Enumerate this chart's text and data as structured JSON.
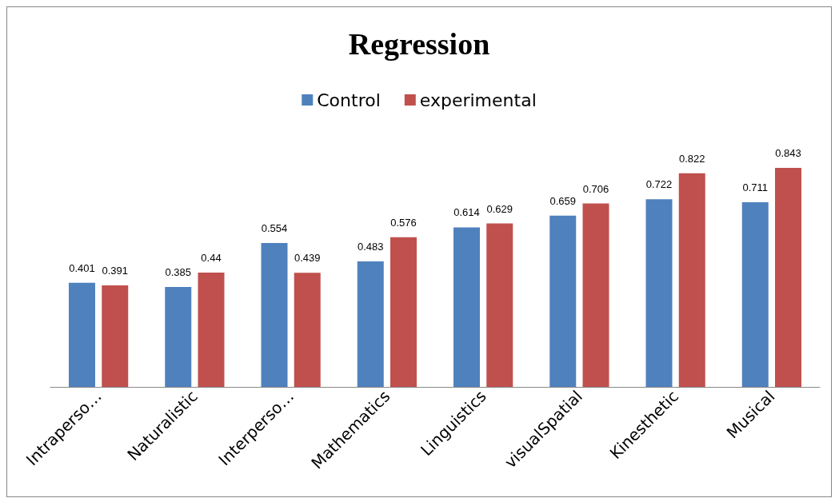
{
  "chart_data": {
    "type": "bar",
    "title": "Regression",
    "categories": [
      "Intraperso…",
      "Naturalistic",
      "Interperso…",
      "Mathematics",
      "Linguistics",
      "visualSpatial",
      "Kinesthetic",
      "Musical"
    ],
    "series": [
      {
        "name": "Control",
        "color": "#4f81bd",
        "values": [
          0.401,
          0.385,
          0.554,
          0.483,
          0.614,
          0.659,
          0.722,
          0.711
        ]
      },
      {
        "name": "experimental",
        "color": "#c0504d",
        "values": [
          0.391,
          0.44,
          0.439,
          0.576,
          0.629,
          0.706,
          0.822,
          0.843
        ]
      }
    ],
    "data_labels": true,
    "legend": "top",
    "grid": false
  }
}
